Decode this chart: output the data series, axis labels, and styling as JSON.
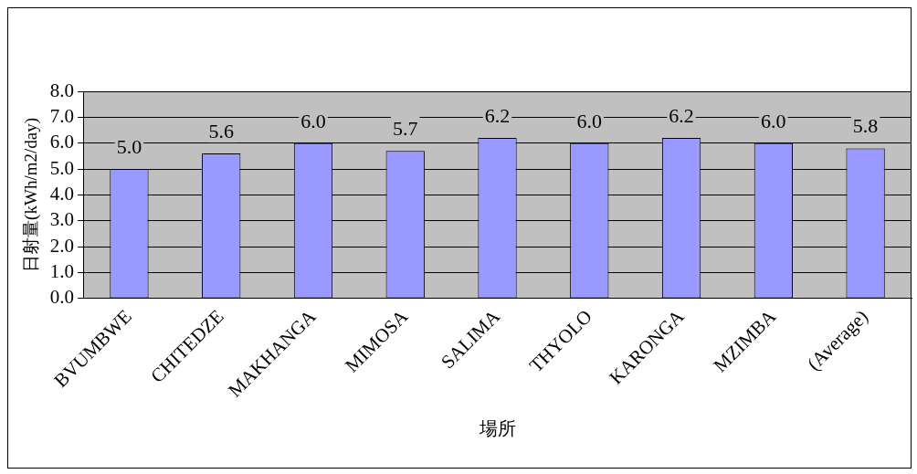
{
  "chart_data": {
    "type": "bar",
    "xlabel": "場所",
    "ylabel": "日射量(kWh/m2/day)",
    "categories": [
      "BVUMBWE",
      "CHITEDZE",
      "MAKHANGA",
      "MIMOSA",
      "SALIMA",
      "THYOLO",
      "KARONGA",
      "MZIMBA",
      "(Average)"
    ],
    "values": [
      5.0,
      5.6,
      6.0,
      5.7,
      6.2,
      6.0,
      6.2,
      6.0,
      5.8
    ],
    "value_labels": [
      "5.0",
      "5.6",
      "6.0",
      "5.7",
      "6.2",
      "6.0",
      "6.2",
      "6.0",
      "5.8"
    ],
    "color": "#9999ff",
    "ylim": [
      0,
      8
    ],
    "yticks": [
      {
        "value": 0,
        "label": "0.0"
      },
      {
        "value": 1,
        "label": "1.0"
      },
      {
        "value": 2,
        "label": "2.0"
      },
      {
        "value": 3,
        "label": "3.0"
      },
      {
        "value": 4,
        "label": "4.0"
      },
      {
        "value": 5,
        "label": "5.0"
      },
      {
        "value": 6,
        "label": "6.0"
      },
      {
        "value": 7,
        "label": "7.0"
      },
      {
        "value": 8,
        "label": "8.0"
      }
    ],
    "grid": "y",
    "legend": false
  }
}
